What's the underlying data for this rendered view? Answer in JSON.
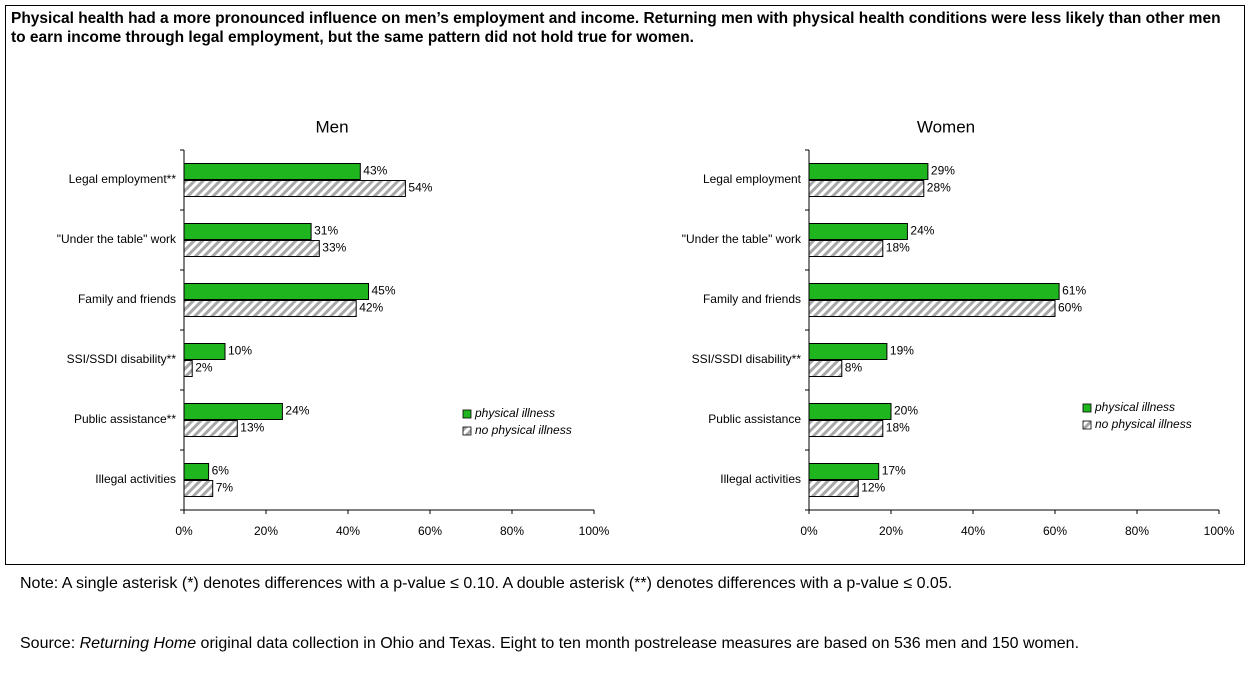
{
  "heading": "Physical health had a more pronounced influence on men’s employment and income.  Returning men with physical health conditions were less likely than other men to earn income through legal employment, but the same pattern did not hold true for women.",
  "chart_data": [
    {
      "type": "bar",
      "orientation": "horizontal",
      "title": "Men",
      "categories": [
        "Legal employment**",
        "\"Under the table\" work",
        "Family and friends",
        "SSI/SSDI disability**",
        "Public assistance**",
        "Illegal activities"
      ],
      "series": [
        {
          "name": "physical illness",
          "color": "#1fb51f",
          "pattern": "solid",
          "values": [
            43,
            31,
            45,
            10,
            24,
            6
          ],
          "value_labels": [
            "43%",
            "31%",
            "45%",
            "10%",
            "24%",
            "6%"
          ]
        },
        {
          "name": "no physical illness",
          "color": "#a8a8a8",
          "pattern": "hatch",
          "values": [
            54,
            33,
            42,
            2,
            13,
            7
          ],
          "value_labels": [
            "54%",
            "33%",
            "42%",
            "2%",
            "13%",
            "7%"
          ]
        }
      ],
      "xlim": [
        0,
        100
      ],
      "xticks": [
        {
          "value": 0,
          "label": "0%"
        },
        {
          "value": 20,
          "label": "20%"
        },
        {
          "value": 40,
          "label": "40%"
        },
        {
          "value": 60,
          "label": "60%"
        },
        {
          "value": 80,
          "label": "80%"
        },
        {
          "value": 100,
          "label": "100%"
        }
      ],
      "legend": "lower right"
    },
    {
      "type": "bar",
      "orientation": "horizontal",
      "title": "Women",
      "categories": [
        "Legal employment",
        "\"Under the table\" work",
        "Family and friends",
        "SSI/SSDI disability**",
        "Public assistance",
        "Illegal activities"
      ],
      "series": [
        {
          "name": "physical illness",
          "color": "#1fb51f",
          "pattern": "solid",
          "values": [
            29,
            24,
            61,
            19,
            20,
            17
          ],
          "value_labels": [
            "29%",
            "24%",
            "61%",
            "19%",
            "20%",
            "17%"
          ]
        },
        {
          "name": "no physical illness",
          "color": "#a8a8a8",
          "pattern": "hatch",
          "values": [
            28,
            18,
            60,
            8,
            18,
            12
          ],
          "value_labels": [
            "28%",
            "18%",
            "60%",
            "8%",
            "18%",
            "12%"
          ]
        }
      ],
      "xlim": [
        0,
        100
      ],
      "xticks": [
        {
          "value": 0,
          "label": "0%"
        },
        {
          "value": 20,
          "label": "20%"
        },
        {
          "value": 40,
          "label": "40%"
        },
        {
          "value": 60,
          "label": "60%"
        },
        {
          "value": 80,
          "label": "80%"
        },
        {
          "value": 100,
          "label": "100%"
        }
      ],
      "legend": "lower right"
    }
  ],
  "notes": {
    "note": "Note: A single asterisk (*) denotes differences with a p-value ≤ 0.10.  A double asterisk (**) denotes differences with a p-value ≤ 0.05.",
    "source": [
      "Source: ",
      "Returning Home",
      " original data collection in Ohio and Texas. Eight to ten month postrelease measures are based on 536 men and 150 women."
    ]
  }
}
